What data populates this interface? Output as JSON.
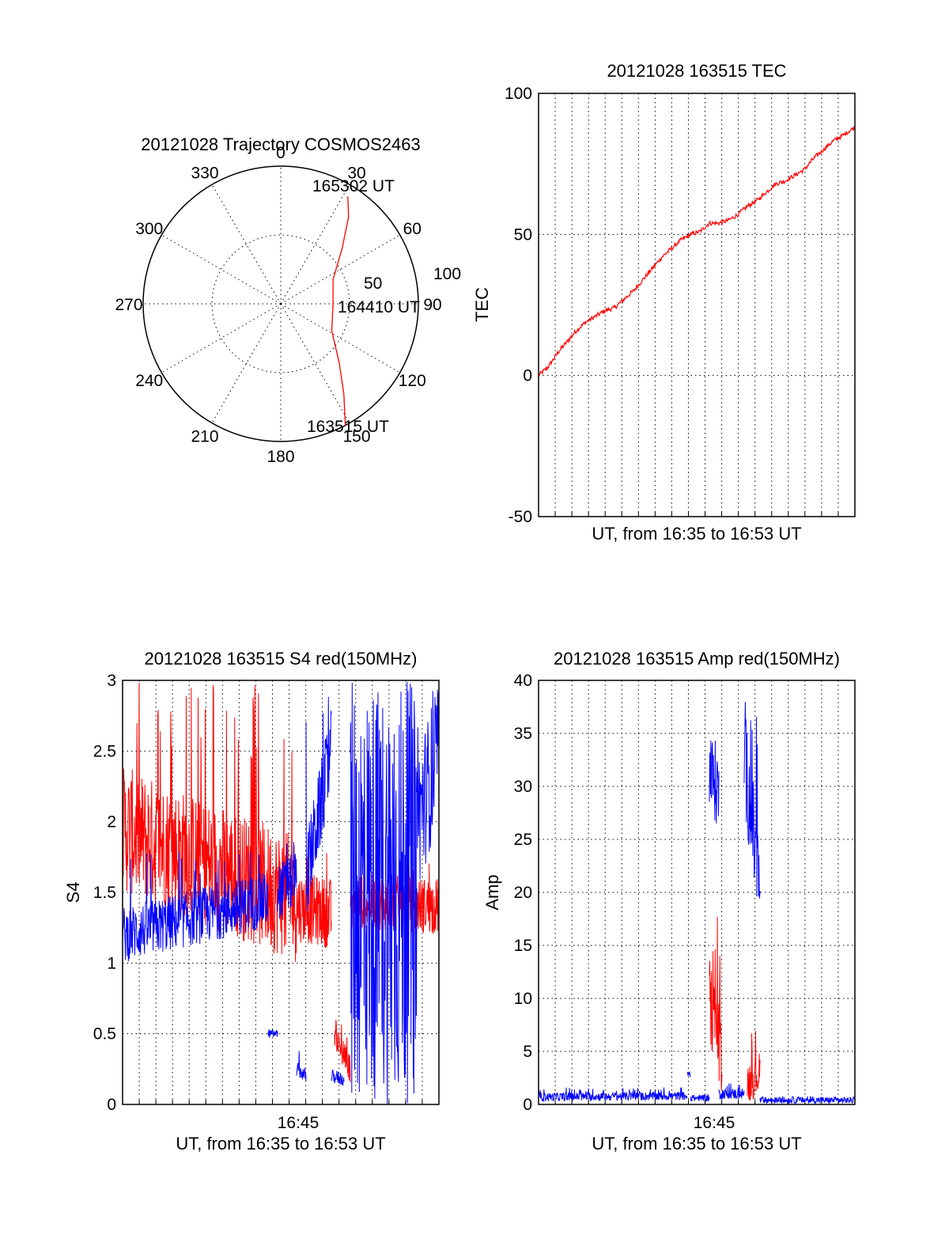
{
  "colors": {
    "red": "#ff0000",
    "blue": "#0000ff",
    "axis": "#000000"
  },
  "chart_data": [
    {
      "type": "polar",
      "title": "20121028 Trajectory COSMOS2463",
      "azimuth_labels": [
        "0",
        "30",
        "60",
        "90",
        "120",
        "150",
        "180",
        "210",
        "240",
        "270",
        "300",
        "330"
      ],
      "radial_labels": [
        "50",
        "100"
      ],
      "radial_range": [
        0,
        100
      ],
      "grid": true,
      "series": [
        {
          "color": "#ff0000",
          "points": [
            {
              "az": 152,
              "r": 100
            },
            {
              "az": 145,
              "r": 80
            },
            {
              "az": 135,
              "r": 60
            },
            {
              "az": 118,
              "r": 42
            },
            {
              "az": 90,
              "r": 38
            },
            {
              "az": 65,
              "r": 42
            },
            {
              "az": 48,
              "r": 60
            },
            {
              "az": 38,
              "r": 80
            },
            {
              "az": 32,
              "r": 92
            }
          ]
        }
      ],
      "annotations": [
        {
          "text": "165302 UT",
          "az": 30,
          "r": 92
        },
        {
          "text": "164410 UT",
          "az": 90,
          "r": 40
        },
        {
          "text": "163515 UT",
          "az": 152,
          "r": 100
        }
      ]
    },
    {
      "type": "line",
      "title": "20121028 163515 TEC",
      "xlabel": "UT, from 16:35 to 16:53 UT",
      "ylabel": "TEC",
      "ylim": [
        -50,
        100
      ],
      "yticks": [
        "100",
        "50",
        "0",
        "-50"
      ],
      "yticks_values": [
        100,
        50,
        0,
        -50
      ],
      "grid": true,
      "series": [
        {
          "color": "#ff0000",
          "x_fraction": [
            0,
            0.03,
            0.06,
            0.09,
            0.12,
            0.15,
            0.18,
            0.21,
            0.24,
            0.27,
            0.3,
            0.33,
            0.36,
            0.39,
            0.42,
            0.45,
            0.48,
            0.51,
            0.54,
            0.57,
            0.6,
            0.63,
            0.66,
            0.69,
            0.72,
            0.75,
            0.78,
            0.81,
            0.84,
            0.87,
            0.9,
            0.93,
            0.96,
            1.0
          ],
          "values": [
            0,
            3,
            8,
            12,
            16,
            19,
            21,
            23,
            24,
            27,
            30,
            34,
            38,
            42,
            45,
            48,
            50,
            51,
            54,
            54,
            55,
            57,
            60,
            62,
            65,
            68,
            69,
            71,
            73,
            77,
            80,
            83,
            85,
            88
          ]
        }
      ]
    },
    {
      "type": "line",
      "title": "20121028 163515 S4 red(150MHz)",
      "xlabel": "UT, from 16:35 to 16:53 UT",
      "ylabel": "S4",
      "ylim": [
        0,
        3
      ],
      "yticks": [
        "3",
        "2.5",
        "2",
        "1.5",
        "1",
        "0.5",
        "0"
      ],
      "yticks_values": [
        3,
        2.5,
        2,
        1.5,
        1,
        0.5,
        0
      ],
      "xtick": "16:45",
      "grid": true,
      "series": [
        {
          "color": "#ff0000",
          "segments": [
            {
              "x": [
                0.0,
                0.55
              ],
              "level": [
                1.95,
                1.45
              ],
              "spread": 0.45,
              "peak": 3
            },
            {
              "x": [
                0.55,
                0.66
              ],
              "level": [
                1.4,
                1.35
              ],
              "spread": 0.25,
              "peak": 1.8
            },
            {
              "x": [
                0.7,
                0.72
              ],
              "level": [
                0.35,
                0.25
              ],
              "spread": 0.1,
              "peak": 0.5
            },
            {
              "x": [
                0.67,
                0.7
              ],
              "level": [
                0.5,
                0.35
              ],
              "spread": 0.1,
              "peak": 0.6
            },
            {
              "x": [
                0.72,
                1.0
              ],
              "level": [
                1.45,
                1.4
              ],
              "spread": 0.2,
              "peak": 1.8
            }
          ]
        },
        {
          "color": "#0000ff",
          "segments": [
            {
              "x": [
                0.0,
                0.46
              ],
              "level": [
                1.2,
                1.45
              ],
              "spread": 0.2,
              "peak": 1.8
            },
            {
              "x": [
                0.46,
                0.49
              ],
              "level": [
                0.5,
                0.5
              ],
              "spread": 0.03,
              "peak": 0.55
            },
            {
              "x": [
                0.49,
                0.55
              ],
              "level": [
                1.5,
                1.6
              ],
              "spread": 0.2,
              "peak": 1.9
            },
            {
              "x": [
                0.55,
                0.58
              ],
              "level": [
                0.25,
                0.2
              ],
              "spread": 0.05,
              "peak": 0.4
            },
            {
              "x": [
                0.58,
                0.66
              ],
              "level": [
                1.6,
                2.5
              ],
              "spread": 0.3,
              "peak": 3
            },
            {
              "x": [
                0.66,
                0.7
              ],
              "level": [
                0.2,
                0.18
              ],
              "spread": 0.05,
              "peak": 0.35
            },
            {
              "x": [
                0.72,
                0.93
              ],
              "level": [
                1.5,
                1.5
              ],
              "spread": 1.5,
              "peak": 3
            },
            {
              "x": [
                0.93,
                1.0
              ],
              "level": [
                2.0,
                2.5
              ],
              "spread": 0.5,
              "peak": 3
            }
          ]
        }
      ]
    },
    {
      "type": "line",
      "title": "20121028 163515 Amp red(150MHz)",
      "xlabel": "UT, from 16:35 to 16:53 UT",
      "ylabel": "Amp",
      "ylim": [
        0,
        40
      ],
      "yticks": [
        "40",
        "35",
        "30",
        "25",
        "20",
        "15",
        "10",
        "5",
        "0"
      ],
      "yticks_values": [
        40,
        35,
        30,
        25,
        20,
        15,
        10,
        5,
        0
      ],
      "xtick": "16:45",
      "grid": true,
      "series": [
        {
          "color": "#0000ff",
          "segments": [
            {
              "x": [
                0.0,
                0.47
              ],
              "level": [
                0.7,
                0.8
              ],
              "spread": 0.4,
              "peak": 1.6
            },
            {
              "x": [
                0.47,
                0.48
              ],
              "level": [
                2.8,
                2.8
              ],
              "spread": 0.3,
              "peak": 3.2
            },
            {
              "x": [
                0.48,
                0.54
              ],
              "level": [
                0.6,
                0.6
              ],
              "spread": 0.3,
              "peak": 1
            },
            {
              "x": [
                0.54,
                0.57
              ],
              "level": [
                31,
                30
              ],
              "spread": 4,
              "peak": 35
            },
            {
              "x": [
                0.57,
                0.65
              ],
              "level": [
                1.0,
                1.0
              ],
              "spread": 0.5,
              "peak": 2
            },
            {
              "x": [
                0.65,
                0.7
              ],
              "level": [
                33,
                20
              ],
              "spread": 5,
              "peak": 39
            },
            {
              "x": [
                0.7,
                1.0
              ],
              "level": [
                0.4,
                0.4
              ],
              "spread": 0.3,
              "peak": 0.8
            }
          ]
        },
        {
          "color": "#ff0000",
          "segments": [
            {
              "x": [
                0.54,
                0.58
              ],
              "level": [
                10,
                5
              ],
              "spread": 4,
              "peak": 18
            },
            {
              "x": [
                0.66,
                0.7
              ],
              "level": [
                2,
                3
              ],
              "spread": 2,
              "peak": 7
            }
          ]
        }
      ]
    }
  ]
}
